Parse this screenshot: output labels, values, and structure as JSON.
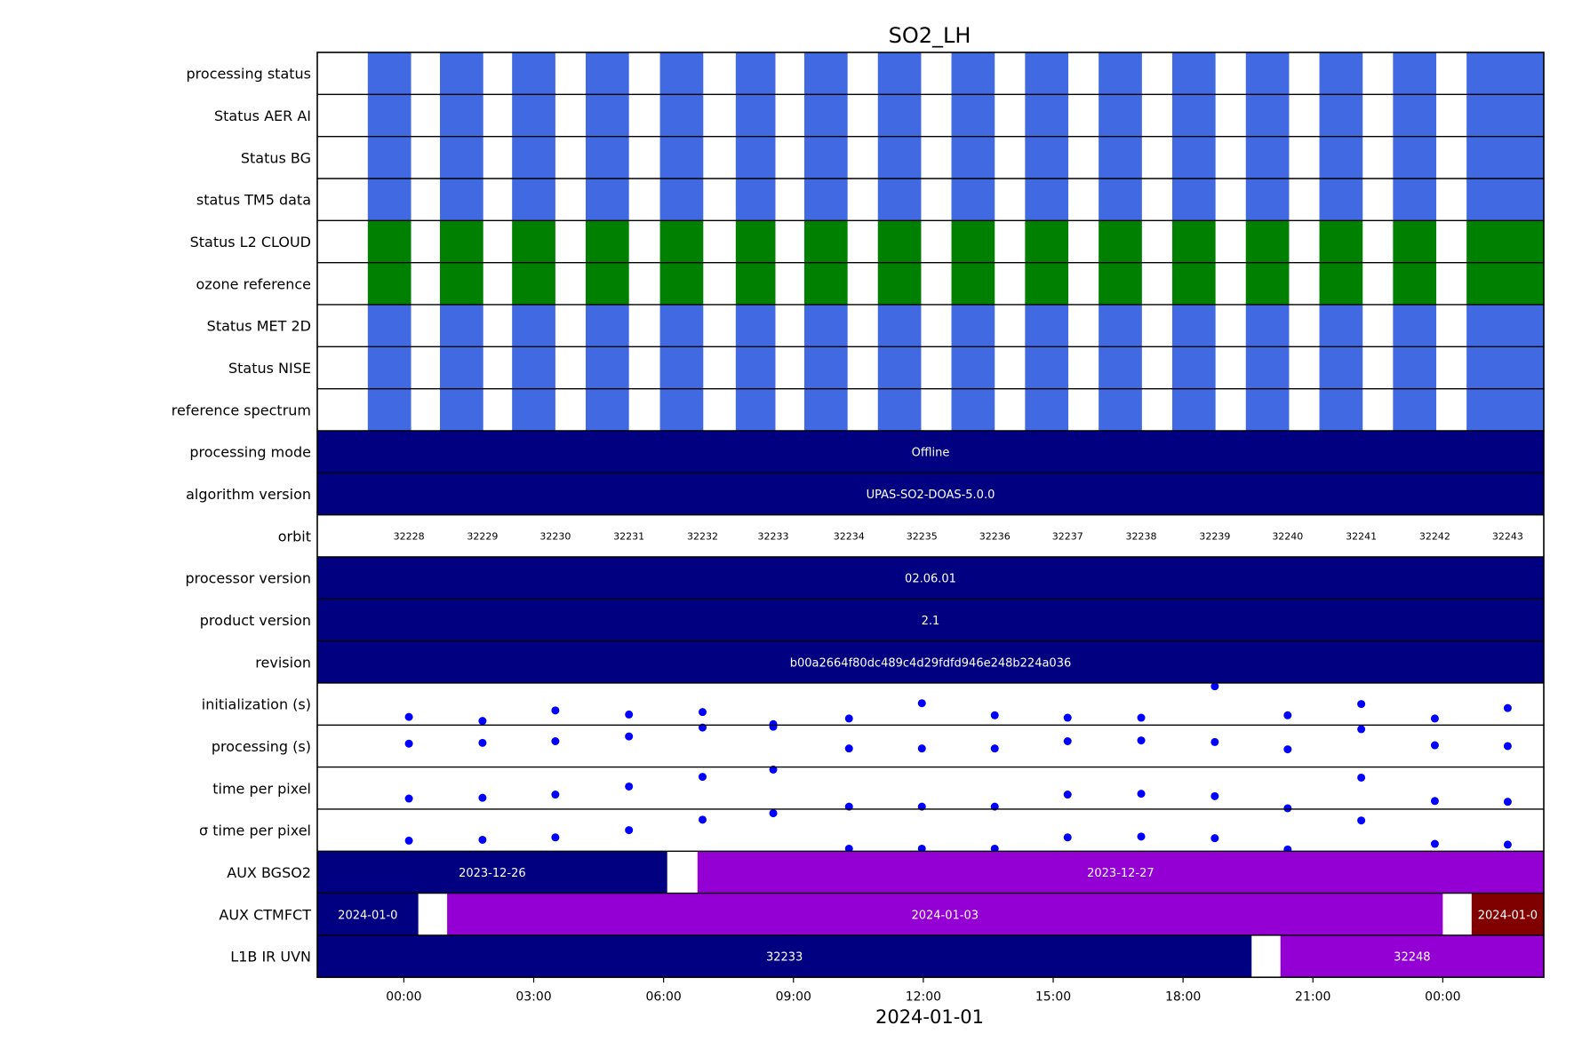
{
  "chart_data": {
    "type": "timeline",
    "title": "SO2_LH",
    "xlabel": "2024-01-01",
    "x_range": [
      "2023-12-31T22:00",
      "2024-01-02T02:20"
    ],
    "x_ticks": [
      {
        "t": "2024-01-01T00:00",
        "label": "00:00"
      },
      {
        "t": "2024-01-01T03:00",
        "label": "03:00"
      },
      {
        "t": "2024-01-01T06:00",
        "label": "06:00"
      },
      {
        "t": "2024-01-01T09:00",
        "label": "09:00"
      },
      {
        "t": "2024-01-01T12:00",
        "label": "12:00"
      },
      {
        "t": "2024-01-01T15:00",
        "label": "15:00"
      },
      {
        "t": "2024-01-01T18:00",
        "label": "18:00"
      },
      {
        "t": "2024-01-01T21:00",
        "label": "21:00"
      },
      {
        "t": "2024-01-02T00:00",
        "label": "00:00"
      }
    ],
    "colors": {
      "ok_blue": "#4169E1",
      "ok_green": "#008000",
      "navy": "#000080",
      "purple": "#9400D3",
      "maroon": "#800000",
      "dot": "#0000FF"
    },
    "orbits": [
      {
        "orbit": "32228",
        "start": "2023-12-31T23:10",
        "end": "2024-01-01T00:10",
        "label_t": "2024-01-01T00:07"
      },
      {
        "orbit": "32229",
        "start": "2024-01-01T00:50",
        "end": "2024-01-01T01:50",
        "label_t": "2024-01-01T01:49"
      },
      {
        "orbit": "32230",
        "start": "2024-01-01T02:30",
        "end": "2024-01-01T03:30",
        "label_t": "2024-01-01T03:30"
      },
      {
        "orbit": "32231",
        "start": "2024-01-01T04:12",
        "end": "2024-01-01T05:12",
        "label_t": "2024-01-01T05:12"
      },
      {
        "orbit": "32232",
        "start": "2024-01-01T05:55",
        "end": "2024-01-01T06:55",
        "label_t": "2024-01-01T06:54"
      },
      {
        "orbit": "32233",
        "start": "2024-01-01T07:40",
        "end": "2024-01-01T08:35",
        "label_t": "2024-01-01T08:32"
      },
      {
        "orbit": "32234",
        "start": "2024-01-01T09:15",
        "end": "2024-01-01T10:15",
        "label_t": "2024-01-01T10:17"
      },
      {
        "orbit": "32235",
        "start": "2024-01-01T10:57",
        "end": "2024-01-01T11:57",
        "label_t": "2024-01-01T11:58"
      },
      {
        "orbit": "32236",
        "start": "2024-01-01T12:39",
        "end": "2024-01-01T13:39",
        "label_t": "2024-01-01T13:39"
      },
      {
        "orbit": "32237",
        "start": "2024-01-01T14:21",
        "end": "2024-01-01T15:21",
        "label_t": "2024-01-01T15:20"
      },
      {
        "orbit": "32238",
        "start": "2024-01-01T16:03",
        "end": "2024-01-01T17:03",
        "label_t": "2024-01-01T17:02"
      },
      {
        "orbit": "32239",
        "start": "2024-01-01T17:45",
        "end": "2024-01-01T18:45",
        "label_t": "2024-01-01T18:44"
      },
      {
        "orbit": "32240",
        "start": "2024-01-01T19:27",
        "end": "2024-01-01T20:27",
        "label_t": "2024-01-01T20:25"
      },
      {
        "orbit": "32241",
        "start": "2024-01-01T21:09",
        "end": "2024-01-01T22:09",
        "label_t": "2024-01-01T22:07"
      },
      {
        "orbit": "32242",
        "start": "2024-01-01T22:51",
        "end": "2024-01-01T23:51",
        "label_t": "2024-01-01T23:49"
      },
      {
        "orbit": "32243",
        "start": "2024-01-02T00:33",
        "end": "2024-01-02T02:20",
        "label_t": "2024-01-02T01:30"
      }
    ],
    "status_rows": [
      {
        "label": "processing status",
        "color": "ok_blue"
      },
      {
        "label": "Status AER AI",
        "color": "ok_blue"
      },
      {
        "label": "Status BG",
        "color": "ok_blue"
      },
      {
        "label": "status TM5 data",
        "color": "ok_blue"
      },
      {
        "label": "Status L2  CLOUD",
        "color": "ok_green"
      },
      {
        "label": "ozone reference",
        "color": "ok_green"
      },
      {
        "label": "Status MET 2D",
        "color": "ok_blue"
      },
      {
        "label": "Status NISE",
        "color": "ok_blue"
      },
      {
        "label": "reference spectrum",
        "color": "ok_blue"
      }
    ],
    "text_rows": [
      {
        "label": "processing mode",
        "value": "Offline"
      },
      {
        "label": "algorithm version",
        "value": "UPAS-SO2-DOAS-5.0.0"
      },
      {
        "label": "orbit",
        "value": ""
      },
      {
        "label": "processor version",
        "value": "02.06.01"
      },
      {
        "label": "product version",
        "value": "2.1"
      },
      {
        "label": "revision",
        "value": "b00a2664f80dc489c4d29fdfd946e248b224a036"
      }
    ],
    "scatter_rows": [
      {
        "label": "initialization (s)",
        "ylim": [
          0,
          1
        ],
        "values": [
          0.18,
          0.08,
          0.34,
          0.24,
          0.3,
          0.0,
          0.14,
          0.52,
          0.22,
          0.16,
          0.16,
          0.94,
          0.22,
          0.5,
          0.14,
          0.4
        ]
      },
      {
        "label": "processing (s)",
        "ylim": [
          0,
          1
        ],
        "values": [
          0.56,
          0.58,
          0.62,
          0.74,
          0.96,
          0.98,
          0.44,
          0.44,
          0.44,
          0.62,
          0.64,
          0.6,
          0.42,
          0.92,
          0.52,
          0.5
        ]
      },
      {
        "label": "time per pixel",
        "ylim": [
          0,
          1
        ],
        "values": [
          0.24,
          0.26,
          0.34,
          0.54,
          0.78,
          0.96,
          0.04,
          0.04,
          0.04,
          0.34,
          0.36,
          0.3,
          0.0,
          0.76,
          0.18,
          0.16
        ]
      },
      {
        "label": "σ time per pixel",
        "ylim": [
          0,
          1
        ],
        "values": [
          0.24,
          0.26,
          0.32,
          0.5,
          0.76,
          0.92,
          0.04,
          0.04,
          0.04,
          0.32,
          0.34,
          0.3,
          0.02,
          0.74,
          0.16,
          0.14
        ]
      }
    ],
    "aux_rows": [
      {
        "label": "AUX BGSO2",
        "segments": [
          {
            "start": "2023-12-31T22:00",
            "end": "2024-01-01T06:05",
            "color": "navy",
            "text": "2023-12-26"
          },
          {
            "start": "2024-01-01T06:47",
            "end": "2024-01-02T02:20",
            "color": "purple",
            "text": "2023-12-27"
          }
        ]
      },
      {
        "label": "AUX CTMFCT",
        "segments": [
          {
            "start": "2023-12-31T22:00",
            "end": "2024-01-01T00:20",
            "color": "navy",
            "text": "2024-01-0"
          },
          {
            "start": "2024-01-01T01:00",
            "end": "2024-01-02T00:00",
            "color": "purple",
            "text": "2024-01-03"
          },
          {
            "start": "2024-01-02T00:40",
            "end": "2024-01-02T02:20",
            "color": "maroon",
            "text": "2024-01-0"
          }
        ]
      },
      {
        "label": "L1B IR UVN",
        "segments": [
          {
            "start": "2023-12-31T22:00",
            "end": "2024-01-01T19:35",
            "color": "navy",
            "text": "32233"
          },
          {
            "start": "2024-01-01T20:15",
            "end": "2024-01-02T02:20",
            "color": "purple",
            "text": "32248"
          }
        ]
      }
    ]
  }
}
